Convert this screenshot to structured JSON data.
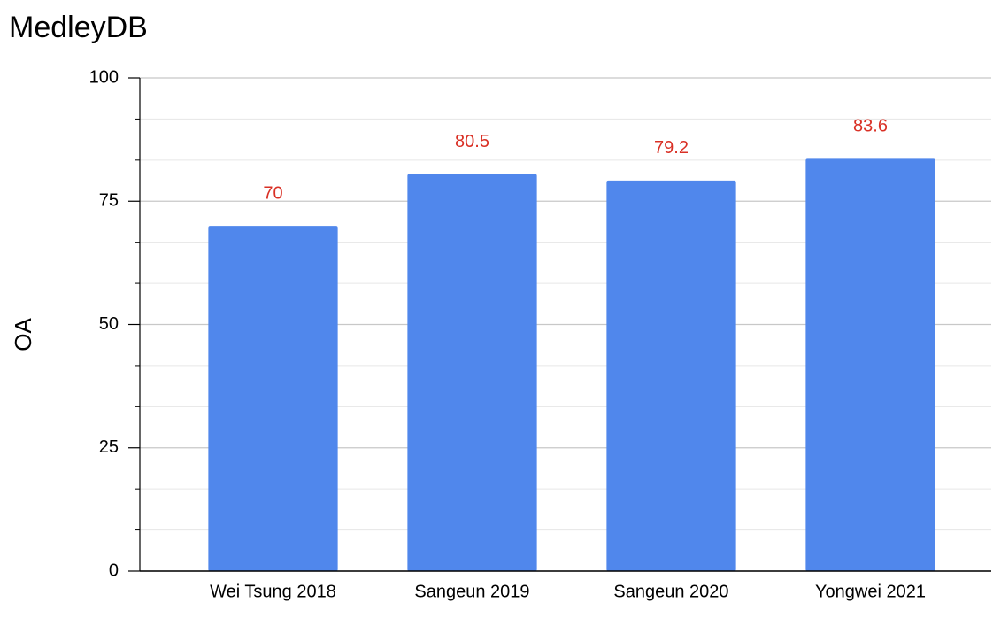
{
  "chart_data": {
    "type": "bar",
    "title": "MedleyDB",
    "y_label": "OA",
    "categories": [
      "Wei Tsung 2018",
      "Sangeun 2019",
      "Sangeun 2020",
      "Yongwei 2021"
    ],
    "values": [
      70,
      80.5,
      79.2,
      83.6
    ],
    "color": "#5087ec",
    "value_label_color": "#d93025",
    "title_color": "#dc4cf5",
    "ylim": [
      0,
      100
    ],
    "yticks": [
      0,
      25,
      50,
      75,
      100
    ],
    "grid": true
  }
}
